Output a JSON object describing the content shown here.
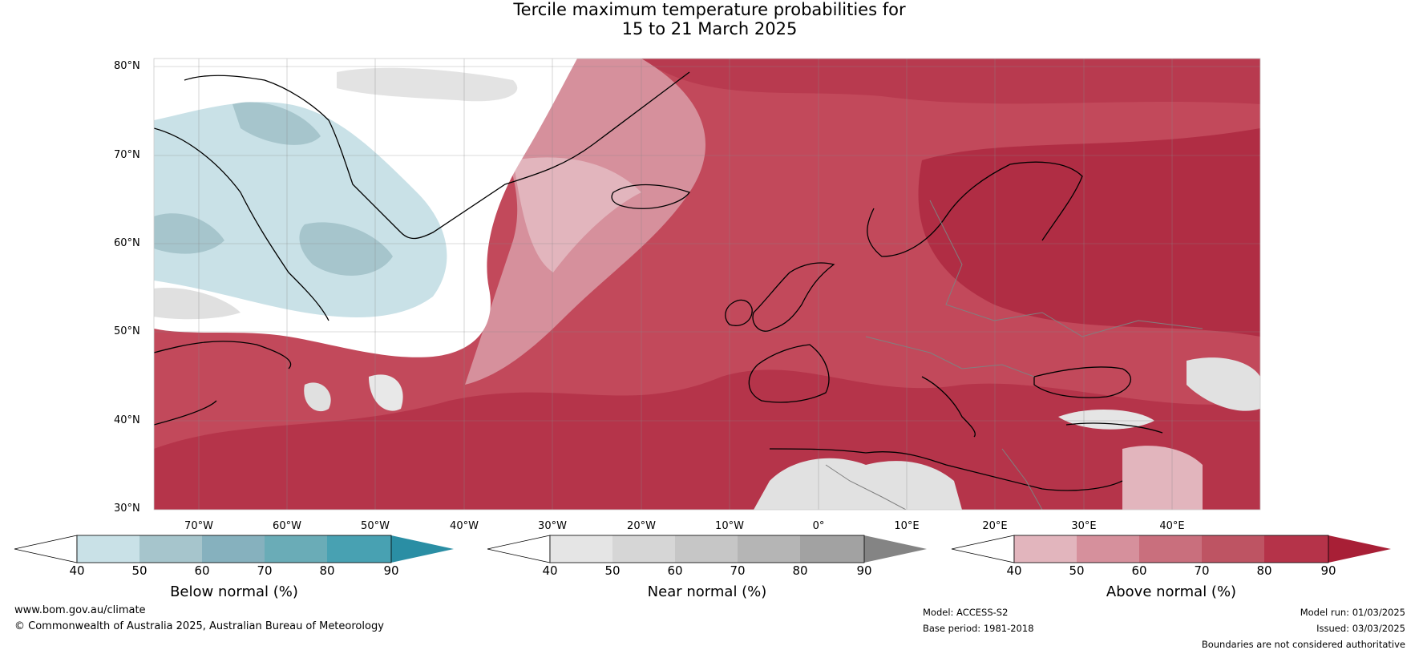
{
  "title_line1": "Tercile maximum temperature probabilities for",
  "title_line2": "15 to 21 March 2025",
  "lat_labels": [
    "80°N",
    "70°N",
    "60°N",
    "50°N",
    "40°N",
    "30°N"
  ],
  "lon_labels": [
    "70°W",
    "60°W",
    "50°W",
    "40°W",
    "30°W",
    "20°W",
    "10°W",
    "0°",
    "10°E",
    "20°E",
    "30°E",
    "40°E"
  ],
  "colorbars": [
    {
      "title": "Below normal (%)",
      "ticks": [
        "40",
        "50",
        "60",
        "70",
        "80",
        "90"
      ],
      "colors": [
        "#c9e1e7",
        "#a6c5cc",
        "#86b1be",
        "#6aacb7",
        "#48a1b2"
      ],
      "low": "#ffffff",
      "high": "#2a8ea4"
    },
    {
      "title": "Near normal (%)",
      "ticks": [
        "40",
        "50",
        "60",
        "70",
        "80",
        "90"
      ],
      "colors": [
        "#e5e5e5",
        "#d6d6d6",
        "#c6c6c6",
        "#b5b5b5",
        "#a2a2a2"
      ],
      "low": "#ffffff",
      "high": "#848484"
    },
    {
      "title": "Above normal (%)",
      "ticks": [
        "40",
        "50",
        "60",
        "70",
        "80",
        "90"
      ],
      "colors": [
        "#e2b5bd",
        "#d6909c",
        "#c96f7d",
        "#be5463",
        "#b53349"
      ],
      "low": "#ffffff",
      "high": "#a81f36"
    }
  ],
  "footer": {
    "url": "www.bom.gov.au/climate",
    "copyright": "© Commonwealth of Australia 2025, Australian Bureau of Meteorology",
    "model": "Model: ACCESS-S2",
    "base_period": "Base period: 1981-2018",
    "model_run": "Model run: 01/03/2025",
    "issued": "Issued: 03/03/2025",
    "disclaimer": "Boundaries are not considered authoritative"
  },
  "legend_colors": {
    "below": "#a6c5cc",
    "near": "#d6d6d6",
    "above": "#be5463",
    "coast": "#000000",
    "border": "#808080"
  }
}
